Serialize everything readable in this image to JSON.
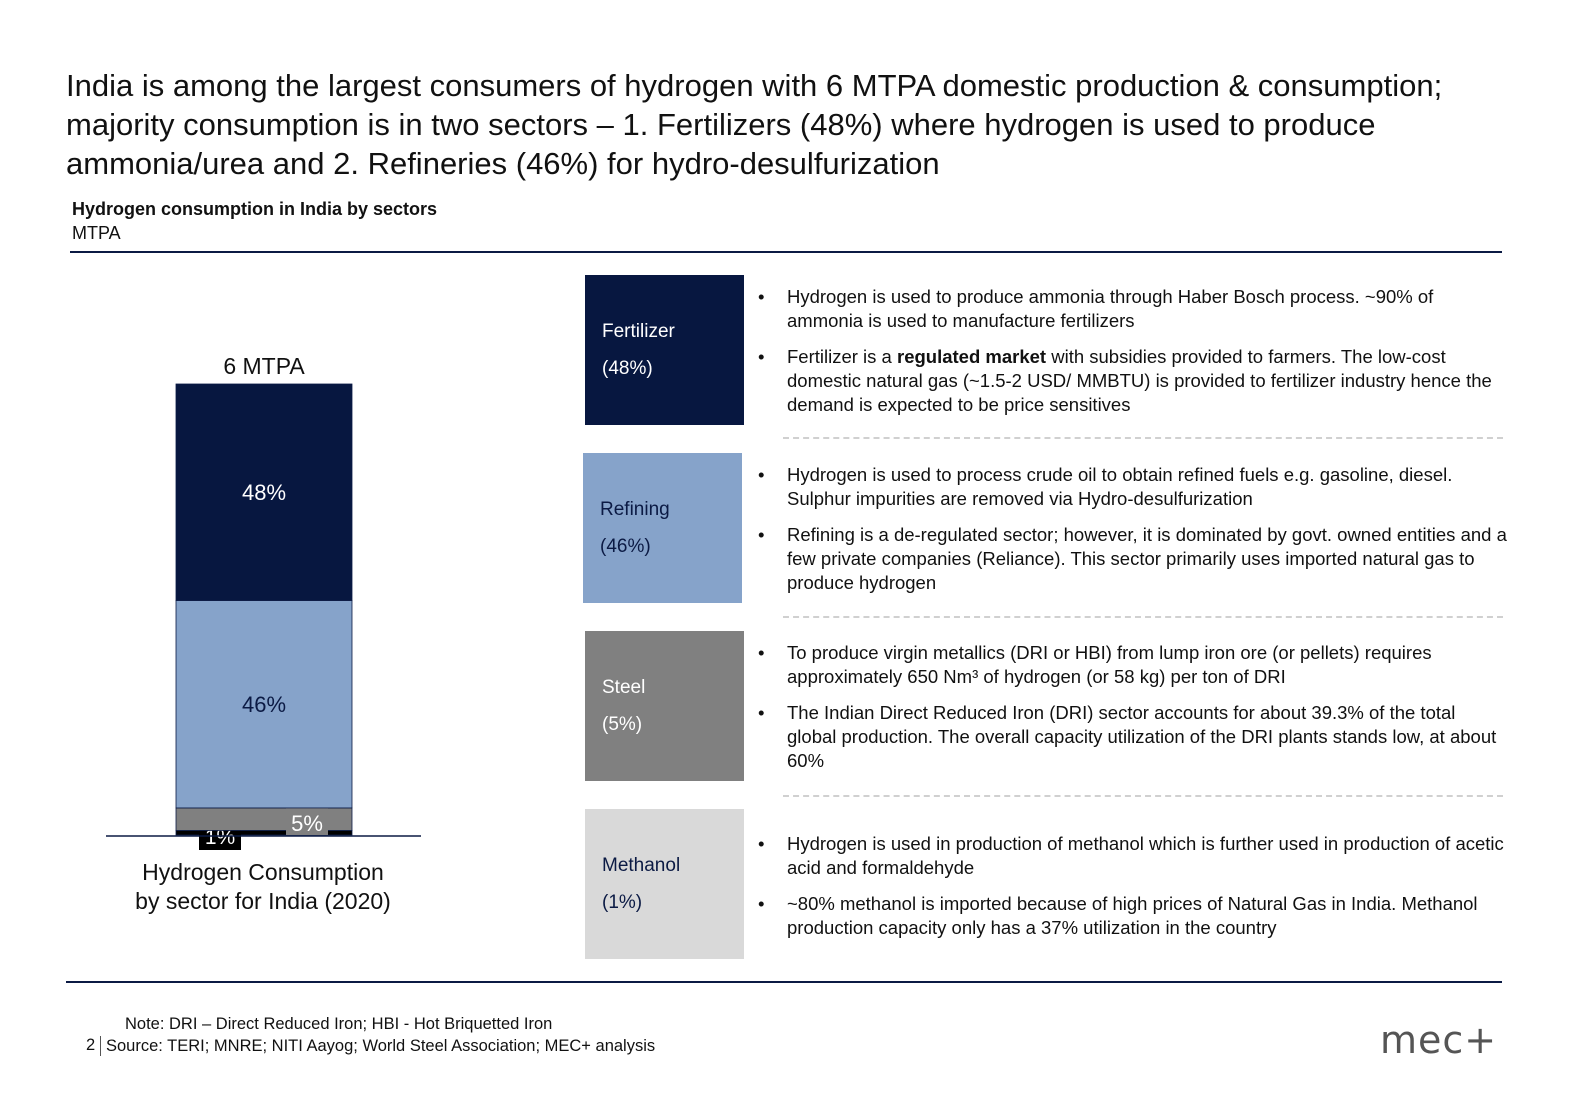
{
  "title": "India is among the largest consumers of hydrogen with 6 MTPA domestic production & consumption; majority consumption is in two sectors – 1. Fertilizers (48%) where hydrogen is used to produce ammonia/urea and 2. Refineries (46%) for hydro-desulfurization",
  "chart_title": "Hydrogen consumption in India by sectors",
  "chart_unit": "MTPA",
  "chart_data": {
    "type": "bar",
    "subtype": "stacked-100",
    "total_label": "6 MTPA",
    "categories": [
      "Hydrogen Consumption by sector for India (2020)"
    ],
    "series": [
      {
        "name": "Methanol",
        "values": [
          1
        ],
        "label": "1%",
        "color": "#000000"
      },
      {
        "name": "Steel",
        "values": [
          5
        ],
        "label": "5%",
        "color": "#808080"
      },
      {
        "name": "Refining",
        "values": [
          46
        ],
        "label": "46%",
        "color": "#86a3ca"
      },
      {
        "name": "Fertilizer",
        "values": [
          48
        ],
        "label": "48%",
        "color": "#071740"
      }
    ],
    "xlabel": "Hydrogen Consumption by sector for India (2020)",
    "ylabel": "",
    "ylim": [
      0,
      100
    ]
  },
  "caption_line1": "Hydrogen Consumption",
  "caption_line2": "by sector for India (2020)",
  "sectors": [
    {
      "name": "Fertilizer",
      "share": "(48%)",
      "bg": "#071740",
      "fg": "#ffffff",
      "bullets": [
        {
          "pre": "Hydrogen is used to produce ammonia through Haber Bosch process. ~90% of ammonia is used to manufacture fertilizers",
          "bold": "",
          "post": ""
        },
        {
          "pre": "Fertilizer is a ",
          "bold": "regulated market",
          "post": " with subsidies provided to farmers. The low-cost domestic natural gas (~1.5-2 USD/ MMBTU) is provided to fertilizer industry hence the demand is expected to be price sensitives"
        }
      ]
    },
    {
      "name": "Refining",
      "share": "(46%)",
      "bg": "#86a3ca",
      "fg": "#0b1a44",
      "bullets": [
        {
          "pre": "Hydrogen is used to process crude oil to obtain refined fuels e.g. gasoline, diesel. Sulphur impurities are removed via Hydro-desulfurization",
          "bold": "",
          "post": ""
        },
        {
          "pre": "Refining is a de-regulated sector; however, it is dominated by govt. owned entities and a few private companies (Reliance). This sector primarily uses imported natural gas to produce hydrogen",
          "bold": "",
          "post": ""
        }
      ]
    },
    {
      "name": "Steel",
      "share": "(5%)",
      "bg": "#808080",
      "fg": "#ffffff",
      "bullets": [
        {
          "pre": "To produce virgin metallics (DRI or HBI) from lump iron ore (or pellets) requires approximately 650 Nm³ of hydrogen (or 58 kg) per ton of DRI",
          "bold": "",
          "post": ""
        },
        {
          "pre": "The Indian Direct Reduced Iron (DRI) sector accounts for about 39.3% of the total global production. The overall capacity utilization of the DRI plants stands low, at about 60%",
          "bold": "",
          "post": ""
        }
      ]
    },
    {
      "name": "Methanol",
      "share": "(1%)",
      "bg": "#d9d9d9",
      "fg": "#0b1a44",
      "bullets": [
        {
          "pre": "Hydrogen is used in production of methanol which is further used in production of acetic acid and formaldehyde",
          "bold": "",
          "post": ""
        },
        {
          "pre": "~80% methanol is imported because of high prices of Natural Gas in India. Methanol production capacity only has a 37% utilization in the country",
          "bold": "",
          "post": ""
        }
      ]
    }
  ],
  "bullet_char": "•",
  "note": "Note: DRI – Direct Reduced Iron; HBI - Hot Briquetted Iron",
  "page_number": "2",
  "source": "Source:  TERI; MNRE; NITI Aayog; World Steel Association; MEC+ analysis",
  "logo_text": "mec+"
}
